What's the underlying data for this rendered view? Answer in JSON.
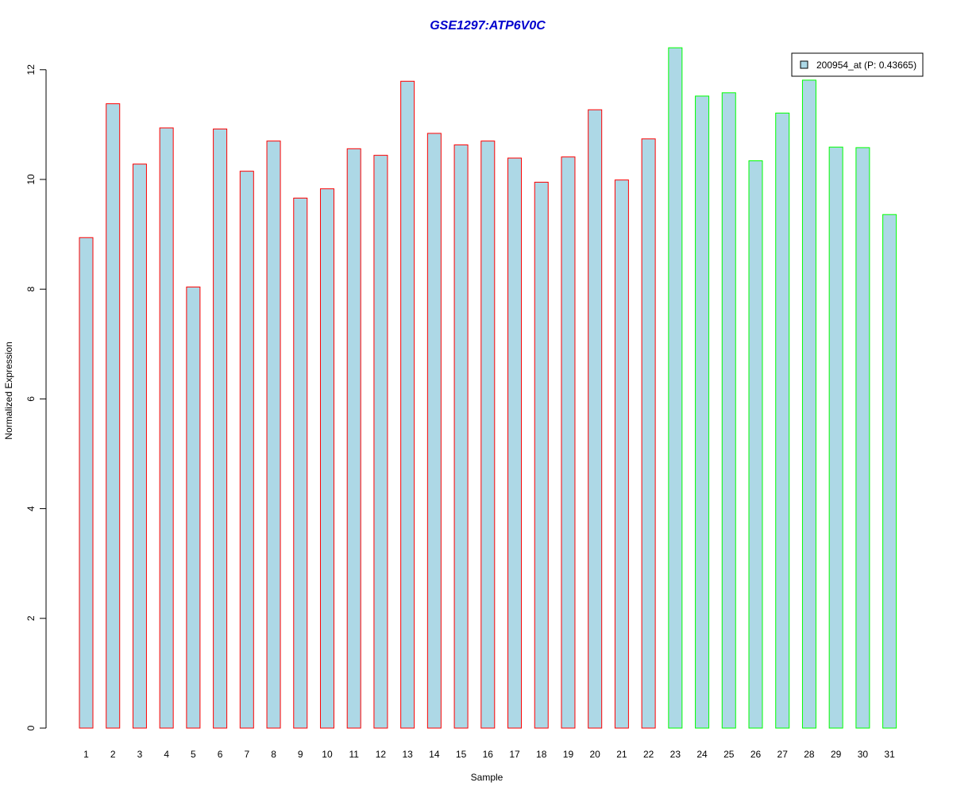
{
  "chart_data": {
    "type": "bar",
    "title": "GSE1297:ATP6V0C",
    "xlabel": "Sample",
    "ylabel": "Normalized Expression",
    "categories": [
      "1",
      "2",
      "3",
      "4",
      "5",
      "6",
      "7",
      "8",
      "9",
      "10",
      "11",
      "12",
      "13",
      "14",
      "15",
      "16",
      "17",
      "18",
      "19",
      "20",
      "21",
      "22",
      "23",
      "24",
      "25",
      "26",
      "27",
      "28",
      "29",
      "30",
      "31"
    ],
    "series": [
      {
        "name": "200954_at (P: 0.43665)",
        "values": [
          8.94,
          11.38,
          10.28,
          10.94,
          8.04,
          10.92,
          10.15,
          10.7,
          9.66,
          9.83,
          10.56,
          10.44,
          11.79,
          10.84,
          10.63,
          10.7,
          10.39,
          9.95,
          10.41,
          11.27,
          9.99,
          10.74,
          12.4,
          11.52,
          11.58,
          10.34,
          11.21,
          11.81,
          10.59,
          10.58,
          9.36
        ]
      }
    ],
    "groups": [
      1,
      1,
      1,
      1,
      1,
      1,
      1,
      1,
      1,
      1,
      1,
      1,
      1,
      1,
      1,
      1,
      1,
      1,
      1,
      1,
      1,
      1,
      2,
      2,
      2,
      2,
      2,
      2,
      2,
      2,
      2
    ],
    "ylim": [
      0,
      12.4
    ],
    "yticks": [
      0,
      2,
      4,
      6,
      8,
      10,
      12
    ],
    "grid": false,
    "legend_position": "top-right",
    "colors": {
      "bar_fill": "#add8e6",
      "group1_border": "#ff0000",
      "group2_border": "#00ff00",
      "title": "#0000cd",
      "axis": "#000000"
    }
  }
}
